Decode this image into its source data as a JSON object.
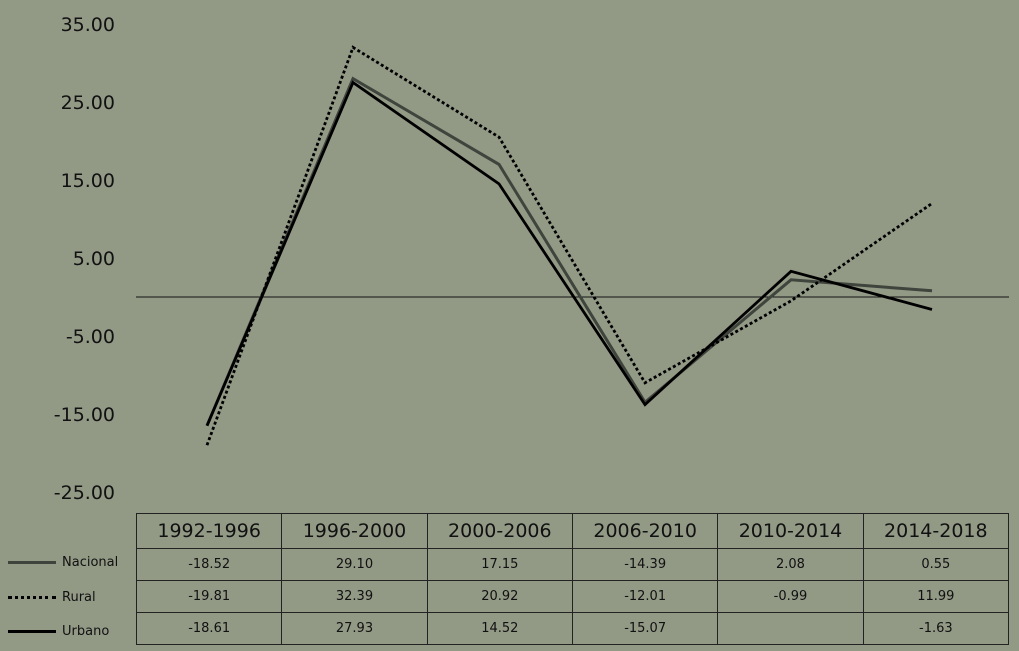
{
  "chart_data": {
    "type": "line",
    "categories": [
      "1992-1996",
      "1996-2000",
      "2000-2006",
      "2006-2010",
      "2010-2014",
      "2014-2018"
    ],
    "series": [
      {
        "name": "Nacional",
        "values": [
          -18.52,
          29.1,
          17.15,
          -14.39,
          2.08,
          0.55
        ],
        "color": "#3f443c",
        "style": "solid"
      },
      {
        "name": "Rural",
        "values": [
          -19.81,
          32.39,
          20.92,
          -12.01,
          -0.99,
          11.99
        ],
        "color": "#000000",
        "style": "dotted"
      },
      {
        "name": "Urbano",
        "values": [
          -18.61,
          27.93,
          14.52,
          -15.07,
          null,
          -1.63
        ],
        "color": "#000000",
        "style": "solid"
      }
    ],
    "plotted_values": {
      "Nacional": [
        -16.5,
        28.0,
        17.0,
        -13.5,
        2.2,
        0.8
      ],
      "Rural": [
        -19.0,
        32.0,
        20.5,
        -11.0,
        -0.5,
        12.0
      ],
      "Urbano": [
        -16.5,
        27.5,
        14.5,
        -13.8,
        3.3,
        -1.6
      ]
    },
    "ylim": [
      -25,
      35
    ],
    "yticks": [
      "35.00",
      "25.00",
      "15.00",
      "5.00",
      "-5.00",
      "-15.00",
      "-25.00"
    ],
    "ytick_values": [
      35,
      25,
      15,
      5,
      -5,
      -15,
      -25
    ],
    "zero_line": true,
    "grid": false,
    "legend": "table-left"
  }
}
